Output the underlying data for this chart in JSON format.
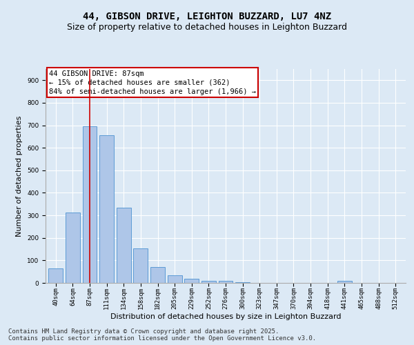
{
  "title_line1": "44, GIBSON DRIVE, LEIGHTON BUZZARD, LU7 4NZ",
  "title_line2": "Size of property relative to detached houses in Leighton Buzzard",
  "xlabel": "Distribution of detached houses by size in Leighton Buzzard",
  "ylabel": "Number of detached properties",
  "categories": [
    "40sqm",
    "64sqm",
    "87sqm",
    "111sqm",
    "134sqm",
    "158sqm",
    "182sqm",
    "205sqm",
    "229sqm",
    "252sqm",
    "276sqm",
    "300sqm",
    "323sqm",
    "347sqm",
    "370sqm",
    "394sqm",
    "418sqm",
    "441sqm",
    "465sqm",
    "488sqm",
    "512sqm"
  ],
  "values": [
    63,
    312,
    697,
    657,
    335,
    152,
    70,
    33,
    18,
    10,
    8,
    3,
    0,
    0,
    0,
    0,
    0,
    8,
    0,
    0,
    0
  ],
  "bar_color": "#aec6e8",
  "bar_edge_color": "#5b9bd5",
  "vline_x_index": 2,
  "vline_color": "#cc0000",
  "annotation_text": "44 GIBSON DRIVE: 87sqm\n← 15% of detached houses are smaller (362)\n84% of semi-detached houses are larger (1,966) →",
  "annotation_box_color": "#cc0000",
  "ylim": [
    0,
    950
  ],
  "yticks": [
    0,
    100,
    200,
    300,
    400,
    500,
    600,
    700,
    800,
    900
  ],
  "bg_color": "#dce9f5",
  "plot_bg_color": "#dce9f5",
  "footer_text": "Contains HM Land Registry data © Crown copyright and database right 2025.\nContains public sector information licensed under the Open Government Licence v3.0.",
  "title_fontsize": 10,
  "subtitle_fontsize": 9,
  "axis_label_fontsize": 8,
  "tick_fontsize": 6.5,
  "annotation_fontsize": 7.5,
  "footer_fontsize": 6.5
}
